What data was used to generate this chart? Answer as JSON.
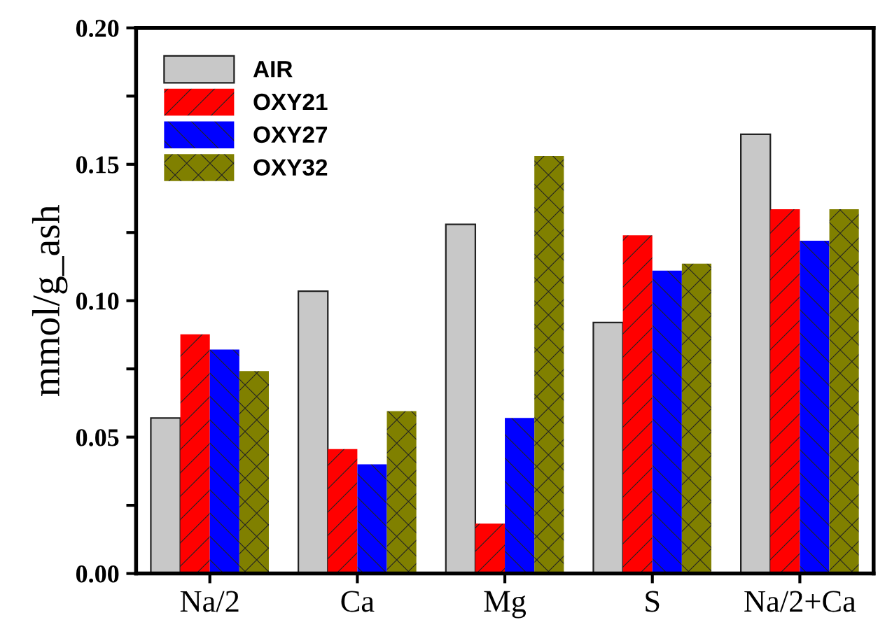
{
  "chart_data": {
    "type": "bar",
    "ylabel": "mmol/g_ash",
    "categories": [
      "Na/2",
      "Ca",
      "Mg",
      "S",
      "Na/2+Ca"
    ],
    "series": [
      {
        "name": "AIR",
        "color": "#c8c8c8",
        "values": [
          0.057,
          0.1035,
          0.128,
          0.092,
          0.161
        ]
      },
      {
        "name": "OXY21",
        "color": "#ff0000",
        "values": [
          0.0877,
          0.0456,
          0.0183,
          0.124,
          0.1335
        ]
      },
      {
        "name": "OXY27",
        "color": "#0000ff",
        "values": [
          0.0821,
          0.04,
          0.057,
          0.111,
          0.122
        ]
      },
      {
        "name": "OXY32",
        "color": "#808000",
        "values": [
          0.0742,
          0.0595,
          0.153,
          0.1136,
          0.1335
        ]
      }
    ],
    "ylim": [
      0,
      0.2
    ],
    "yticks": [
      {
        "value": 0,
        "label": "0.00"
      },
      {
        "value": 0.025,
        "label": null
      },
      {
        "value": 0.05,
        "label": "0.05"
      },
      {
        "value": 0.075,
        "label": null
      },
      {
        "value": 0.1,
        "label": "0.10"
      },
      {
        "value": 0.125,
        "label": null
      },
      {
        "value": 0.15,
        "label": "0.15"
      },
      {
        "value": 0.175,
        "label": null
      },
      {
        "value": 0.2,
        "label": "0.20"
      }
    ],
    "legend": "top left",
    "grid": false
  }
}
